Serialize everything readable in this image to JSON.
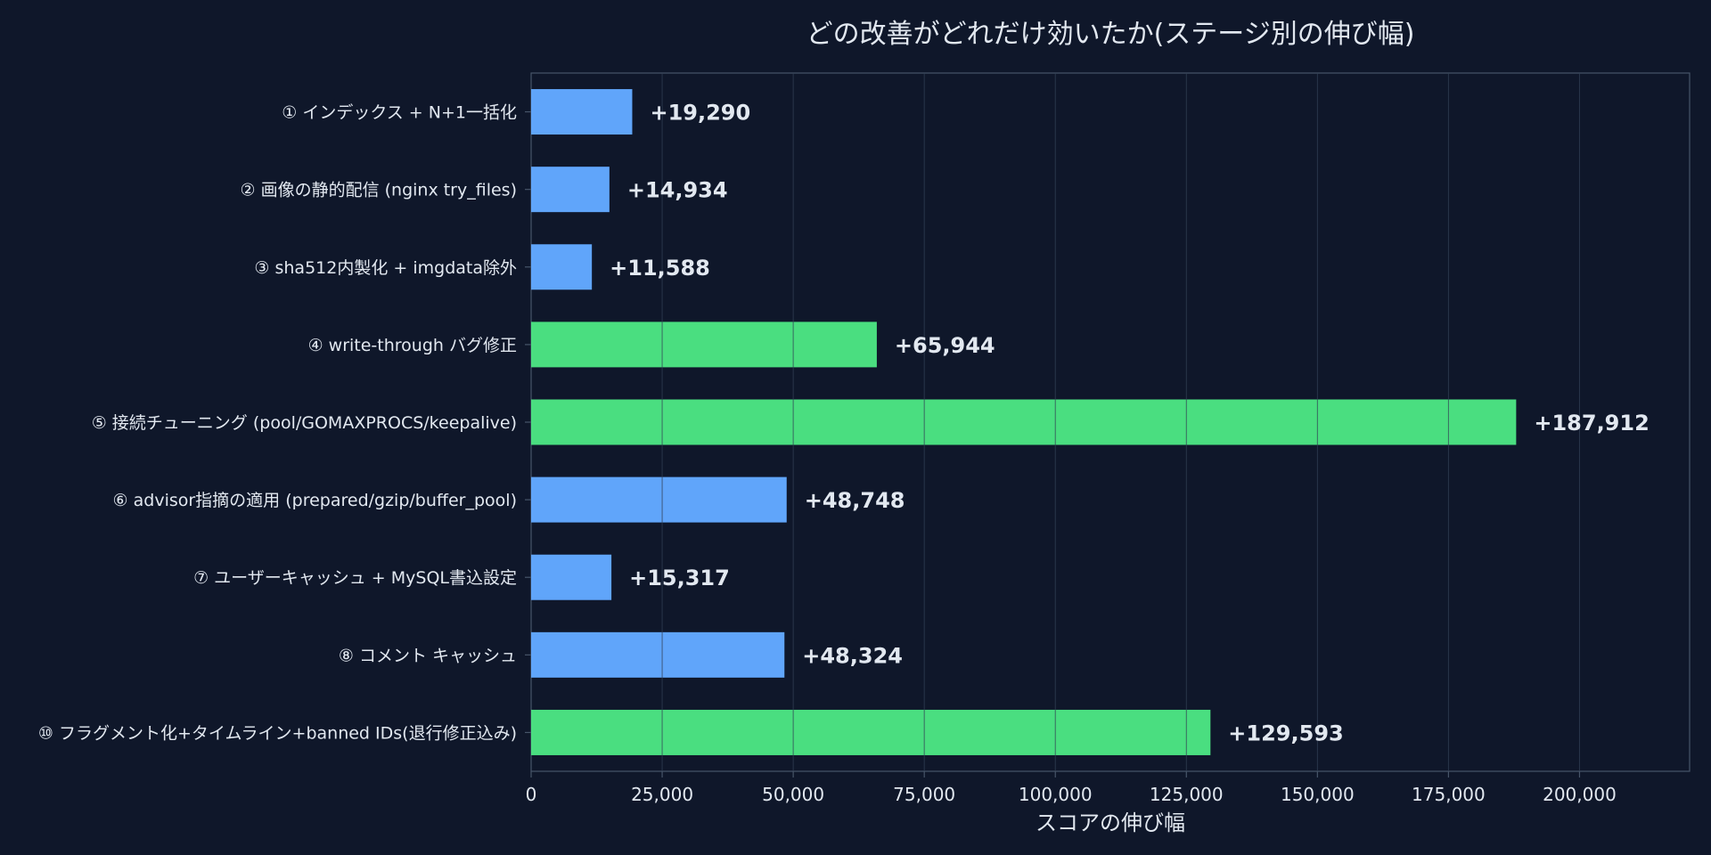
{
  "chart_data": {
    "type": "bar",
    "orientation": "horizontal",
    "title": "どの改善がどれだけ効いたか(ステージ別の伸び幅)",
    "xlabel": "スコアの伸び幅",
    "ylabel": "",
    "xlim": [
      0,
      221000
    ],
    "xticks": [
      0,
      25000,
      50000,
      75000,
      100000,
      125000,
      150000,
      175000,
      200000
    ],
    "xtick_labels": [
      "0",
      "25,000",
      "50,000",
      "75,000",
      "100,000",
      "125,000",
      "150,000",
      "175,000",
      "200,000"
    ],
    "grid": "vertical",
    "categories": [
      "① インデックス + N+1一括化",
      "② 画像の静的配信 (nginx try_files)",
      "③ sha512内製化 + imgdata除外",
      "④ write-through バグ修正",
      "⑤ 接続チューニング (pool/GOMAXPROCS/keepalive)",
      "⑥ advisor指摘の適用 (prepared/gzip/buffer_pool)",
      "⑦ ユーザーキャッシュ + MySQL書込設定",
      "⑧ コメント キャッシュ",
      "⑩ フラグメント化+タイムライン+banned IDs(退行修正込み)"
    ],
    "values": [
      19290,
      14934,
      11588,
      65944,
      187912,
      48748,
      15317,
      48324,
      129593
    ],
    "data_labels": [
      "+19,290",
      "+14,934",
      "+11,588",
      "+65,944",
      "+187,912",
      "+48,748",
      "+15,317",
      "+48,324",
      "+129,593"
    ],
    "bar_colors": [
      "#60a5fa",
      "#60a5fa",
      "#60a5fa",
      "#4ade80",
      "#4ade80",
      "#60a5fa",
      "#60a5fa",
      "#60a5fa",
      "#4ade80"
    ]
  },
  "colors": {
    "background": "#0f172a",
    "text": "#e2e8f0",
    "axis": "#475569",
    "grid": "#334155",
    "blue": "#60a5fa",
    "green": "#4ade80"
  }
}
